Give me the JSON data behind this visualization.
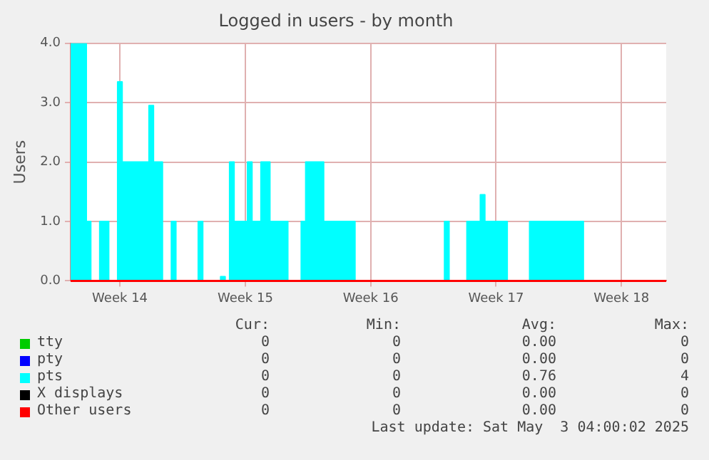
{
  "chart_data": {
    "type": "area",
    "title": "Logged in users - by month",
    "ylabel": "Users",
    "categories": [
      null,
      null,
      null,
      null,
      null,
      null,
      null,
      null,
      null,
      null,
      null,
      "Week 14",
      null,
      null,
      null,
      null,
      null,
      null,
      null,
      null,
      null,
      null,
      null,
      null,
      null,
      null,
      null,
      null,
      null,
      null,
      null,
      null,
      null,
      null,
      null,
      null,
      null,
      null,
      null,
      "Week 15",
      null,
      null,
      null,
      null,
      null,
      null,
      null,
      null,
      null,
      null,
      null,
      null,
      null,
      null,
      null,
      null,
      null,
      null,
      null,
      null,
      null,
      null,
      null,
      null,
      null,
      null,
      null,
      "Week 16",
      null,
      null,
      null,
      null,
      null,
      null,
      null,
      null,
      null,
      null,
      null,
      null,
      null,
      null,
      null,
      null,
      null,
      null,
      null,
      null,
      null,
      null,
      null,
      null,
      null,
      null,
      null,
      "Week 17",
      null,
      null,
      null,
      null,
      null,
      null,
      null,
      null,
      null,
      null,
      null,
      null,
      null,
      null,
      null,
      null,
      null,
      null,
      null,
      null,
      null,
      null,
      null,
      null,
      null,
      null,
      null,
      "Week 18",
      null,
      null,
      null,
      null,
      null,
      null,
      null,
      null,
      null,
      null
    ],
    "ylim": [
      0,
      4
    ],
    "yticks": [
      {
        "value": 0,
        "label": "0.0"
      },
      {
        "value": 1,
        "label": "1.0"
      },
      {
        "value": 2,
        "label": "2.0"
      },
      {
        "value": 3,
        "label": "3.0"
      },
      {
        "value": 4,
        "label": "4.0"
      }
    ],
    "grid": true,
    "legend": "bottom",
    "series": [
      {
        "name": "tty",
        "color": "#00cc00",
        "type": "line",
        "values": [
          null,
          null,
          null,
          null,
          null,
          null,
          null,
          null,
          null,
          null,
          null,
          null,
          null,
          null,
          null,
          null,
          null,
          null,
          null,
          null,
          null,
          null,
          null,
          null,
          null,
          null,
          null,
          null,
          null,
          null,
          null,
          null,
          null,
          null,
          null,
          null,
          null,
          null,
          null,
          null,
          null,
          null,
          null,
          null,
          null,
          null,
          null,
          null,
          null,
          null,
          null,
          null,
          null,
          null,
          null,
          null,
          null,
          null,
          null,
          null,
          null,
          null,
          null,
          null,
          null,
          null,
          null,
          null,
          null,
          null,
          null,
          null,
          null,
          null,
          null,
          null,
          null,
          null,
          null,
          null,
          null,
          null,
          null,
          null,
          null,
          null,
          null,
          null,
          null,
          null,
          null,
          null,
          null,
          null,
          null,
          null,
          null,
          null,
          null,
          null,
          null,
          null,
          null,
          null,
          null,
          null,
          null,
          null,
          null,
          null,
          null,
          null,
          null,
          null,
          null,
          null,
          null,
          null,
          null,
          null,
          null,
          null,
          null,
          null,
          null,
          null,
          null,
          null,
          null,
          null,
          null,
          null,
          null,
          null
        ]
      },
      {
        "name": "pty",
        "color": "#0000ff",
        "type": "line",
        "values": [
          null,
          null,
          null,
          null,
          null,
          null,
          null,
          null,
          null,
          null,
          null,
          null,
          null,
          null,
          null,
          null,
          null,
          null,
          null,
          null,
          null,
          null,
          null,
          null,
          null,
          null,
          null,
          null,
          null,
          null,
          null,
          null,
          null,
          null,
          null,
          null,
          null,
          null,
          null,
          null,
          null,
          null,
          null,
          null,
          null,
          null,
          null,
          null,
          null,
          null,
          null,
          null,
          null,
          null,
          null,
          null,
          null,
          null,
          null,
          null,
          null,
          null,
          null,
          null,
          null,
          null,
          null,
          null,
          null,
          null,
          null,
          null,
          null,
          null,
          null,
          null,
          null,
          null,
          null,
          null,
          null,
          null,
          null,
          null,
          null,
          null,
          null,
          null,
          null,
          null,
          null,
          null,
          null,
          null,
          null,
          null,
          null,
          null,
          null,
          null,
          null,
          null,
          null,
          null,
          null,
          null,
          null,
          null,
          null,
          null,
          null,
          null,
          null,
          null,
          null,
          null,
          null,
          null,
          null,
          null,
          null,
          null,
          null,
          null,
          null,
          null,
          null,
          null,
          null,
          null,
          null,
          null,
          null,
          null
        ]
      },
      {
        "name": "pts",
        "color": "#00ffff",
        "values": [
          4,
          4,
          4,
          4,
          1,
          0,
          0,
          1,
          1,
          0,
          0,
          3.35,
          2,
          2,
          2,
          2,
          2,
          2,
          2.95,
          2,
          2,
          0,
          0,
          1,
          0,
          0,
          0,
          0,
          0,
          1,
          0,
          0,
          0,
          0,
          0.07,
          0,
          2,
          1,
          1,
          1,
          2,
          1,
          1,
          2,
          2,
          1,
          1,
          1,
          1,
          0,
          0,
          0,
          1,
          2,
          2,
          2,
          2,
          1,
          1,
          1,
          1,
          1,
          1,
          1,
          0,
          0,
          0,
          0,
          0,
          0,
          0,
          0,
          0,
          0,
          0,
          0,
          0,
          0,
          0,
          0,
          0,
          0,
          0,
          0,
          1,
          0,
          0,
          0,
          0,
          1,
          1,
          1,
          1.45,
          1,
          1,
          1,
          1,
          1,
          0,
          0,
          0,
          0,
          0,
          1,
          1,
          1,
          1,
          1,
          1,
          1,
          1,
          1,
          1,
          1,
          1,
          0,
          0,
          0,
          0,
          0,
          0,
          0,
          0,
          0,
          0,
          0,
          0,
          0,
          0,
          0,
          0,
          0,
          0,
          0
        ]
      },
      {
        "name": "X displays",
        "color": "#000000",
        "type": "line",
        "values": [
          null,
          null,
          null,
          null,
          null,
          null,
          null,
          null,
          null,
          null,
          null,
          null,
          null,
          null,
          null,
          null,
          null,
          null,
          null,
          null,
          null,
          null,
          null,
          null,
          null,
          null,
          null,
          null,
          null,
          null,
          null,
          null,
          null,
          null,
          null,
          null,
          null,
          null,
          null,
          null,
          null,
          null,
          null,
          null,
          null,
          null,
          null,
          null,
          null,
          null,
          null,
          null,
          null,
          null,
          null,
          null,
          null,
          null,
          null,
          null,
          null,
          null,
          null,
          null,
          null,
          null,
          null,
          null,
          null,
          null,
          null,
          null,
          null,
          null,
          null,
          null,
          null,
          null,
          null,
          null,
          null,
          null,
          null,
          null,
          null,
          null,
          null,
          null,
          null,
          null,
          null,
          null,
          null,
          null,
          null,
          null,
          null,
          null,
          null,
          null,
          null,
          null,
          null,
          null,
          null,
          null,
          null,
          null,
          null,
          null,
          null,
          null,
          null,
          null,
          null,
          null,
          null,
          null,
          null,
          null,
          null,
          null,
          null,
          null,
          null,
          null,
          null,
          null,
          null,
          null,
          null,
          null,
          null,
          null
        ]
      },
      {
        "name": "Other users",
        "color": "#ff0000",
        "type": "line",
        "values": [
          0,
          0,
          0,
          0,
          0,
          0,
          0,
          0,
          0,
          0,
          0,
          0,
          0,
          0,
          0,
          0,
          0,
          0,
          0,
          0,
          0,
          0,
          0,
          0,
          0,
          0,
          0,
          0,
          0,
          0,
          0,
          0,
          0,
          0,
          0,
          0,
          0,
          0,
          0,
          0,
          0,
          0,
          0,
          0,
          0,
          0,
          0,
          0,
          0,
          0,
          0,
          0,
          0,
          0,
          0,
          0,
          0,
          0,
          0,
          0,
          0,
          0,
          0,
          0,
          0,
          0,
          0,
          0,
          0,
          0,
          0,
          0,
          0,
          0,
          0,
          0,
          0,
          0,
          0,
          0,
          0,
          0,
          0,
          0,
          0,
          0,
          0,
          0,
          0,
          0,
          0,
          0,
          0,
          0,
          0,
          0,
          0,
          0,
          0,
          0,
          0,
          0,
          0,
          0,
          0,
          0,
          0,
          0,
          0,
          0,
          0,
          0,
          0,
          0,
          0,
          0,
          0,
          0,
          0,
          0,
          0,
          0,
          0,
          0,
          0,
          0,
          0,
          0,
          0,
          0,
          0,
          0,
          0,
          0
        ]
      }
    ],
    "annotations": [
      "Cur:",
      "Min:",
      "Avg:",
      "Max:",
      "0",
      "0",
      "0.00",
      "0",
      "0",
      "0",
      "0.00",
      "0",
      "0",
      "0",
      "0.76",
      "4",
      "0",
      "0",
      "0.00",
      "0",
      "0",
      "0",
      "0.00",
      "0",
      "Last update: Sat May  3 04:00:02 2025"
    ]
  }
}
